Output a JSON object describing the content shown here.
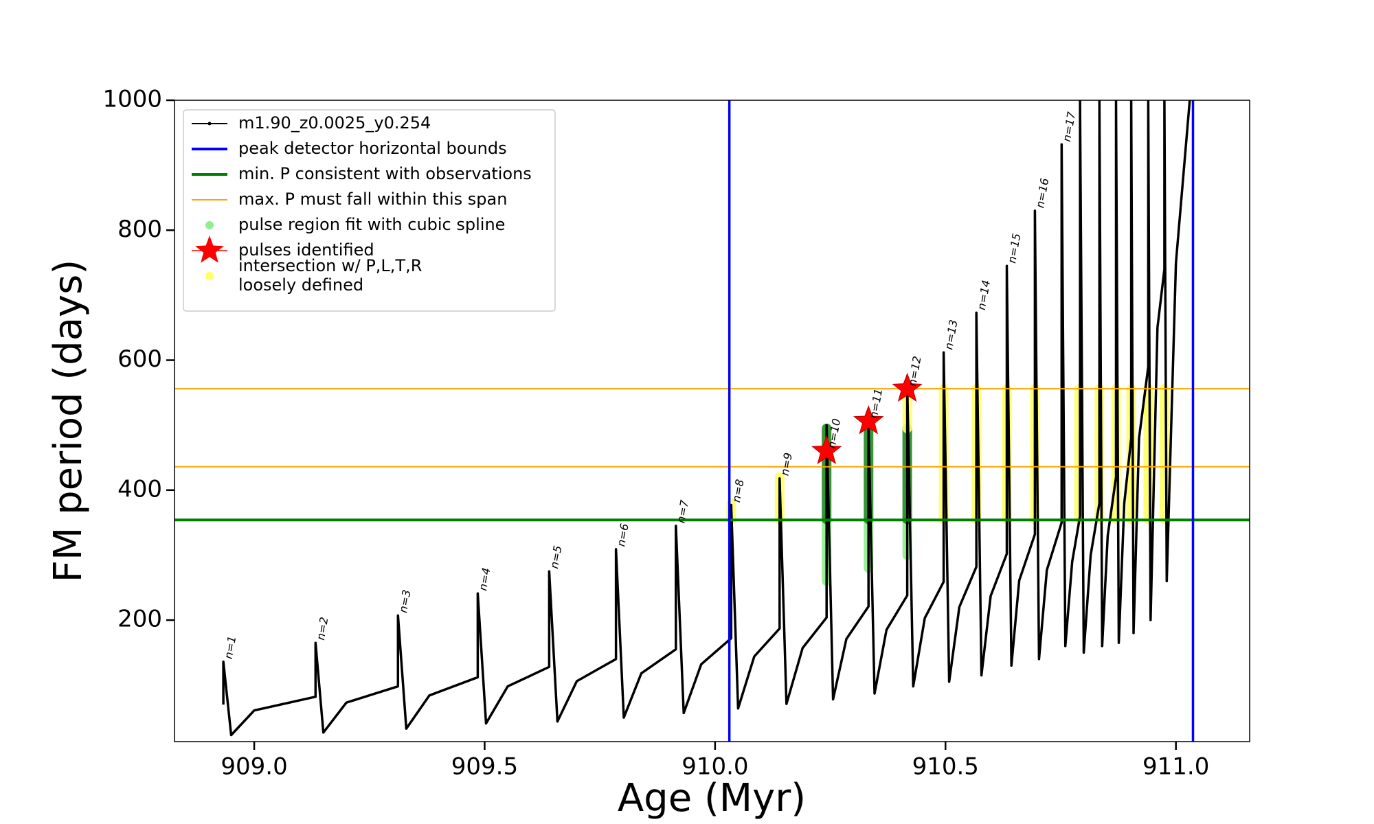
{
  "chart_data": {
    "type": "line",
    "xlabel": "Age (Myr)",
    "ylabel": "FM period (days)",
    "xlim": [
      908.827,
      911.16
    ],
    "ylim": [
      13,
      1000
    ],
    "xticks": [
      {
        "value": 909.0,
        "label": "909.0"
      },
      {
        "value": 909.5,
        "label": "909.5"
      },
      {
        "value": 910.0,
        "label": "910.0"
      },
      {
        "value": 910.5,
        "label": "910.5"
      },
      {
        "value": 911.0,
        "label": "911.0"
      }
    ],
    "yticks": [
      200,
      400,
      600,
      800,
      1000
    ],
    "legend": "upper left",
    "series": [
      {
        "name": "m1.90_z0.0025_y0.254",
        "kind": "line",
        "color": "#000000",
        "x": [
          908.933,
          908.933,
          908.95,
          909.0,
          909.133,
          909.133,
          909.15,
          909.2,
          909.312,
          909.312,
          909.33,
          909.38,
          909.485,
          909.485,
          909.503,
          909.55,
          909.64,
          909.64,
          909.658,
          909.7,
          909.785,
          909.785,
          909.802,
          909.84,
          909.915,
          909.915,
          909.932,
          909.97,
          910.035,
          910.035,
          910.05,
          910.085,
          910.14,
          910.14,
          910.155,
          910.19,
          910.242,
          910.242,
          910.256,
          910.285,
          910.333,
          910.333,
          910.346,
          910.372,
          910.417,
          910.417,
          910.43,
          910.455,
          910.496,
          910.496,
          910.508,
          910.53,
          910.567,
          910.567,
          910.578,
          910.598,
          910.633,
          910.633,
          910.643,
          910.66,
          910.694,
          910.694,
          910.703,
          910.72,
          910.752,
          910.752,
          910.76,
          910.775,
          910.792,
          910.792,
          910.8,
          910.815,
          910.834,
          910.834,
          910.84,
          910.852,
          910.87,
          910.87,
          910.876,
          910.888,
          910.903,
          910.903,
          910.908,
          910.92,
          910.94,
          910.94,
          910.945,
          910.96,
          910.975,
          910.975,
          910.98,
          911.0,
          911.03
        ],
        "values": [
          70,
          136,
          23,
          61,
          82,
          165,
          27,
          73,
          98,
          207,
          33,
          84,
          112,
          241,
          41,
          98,
          128,
          275,
          44,
          106,
          140,
          309,
          50,
          118,
          155,
          345,
          57,
          132,
          172,
          377,
          64,
          144,
          187,
          418,
          71,
          157,
          204,
          500,
          78,
          171,
          221,
          500,
          87,
          185,
          238,
          560,
          98,
          203,
          259,
          612,
          105,
          220,
          282,
          673,
          115,
          237,
          302,
          745,
          130,
          261,
          332,
          830,
          140,
          277,
          350,
          932,
          160,
          290,
          360,
          1000,
          150,
          300,
          380,
          1000,
          160,
          330,
          420,
          1000,
          165,
          380,
          480,
          1000,
          180,
          480,
          590,
          1000,
          200,
          650,
          740,
          1000,
          260,
          750,
          1000
        ]
      },
      {
        "name": "peak detector horizontal bounds",
        "kind": "vline",
        "color": "#0000ff",
        "x": [
          910.031,
          911.037
        ]
      },
      {
        "name": "min. P consistent with observations",
        "kind": "hline",
        "color": "#008000",
        "values": [
          354
        ]
      },
      {
        "name": "max. P must fall within this span",
        "kind": "hline",
        "color": "#ffa500",
        "values": [
          556,
          436
        ]
      },
      {
        "name": "pulse region fit with cubic spline",
        "kind": "band",
        "color": "#90ee90",
        "x": [
          910.242,
          910.333,
          910.417
        ],
        "low": [
          260,
          280,
          300
        ],
        "high": [
          355,
          355,
          355
        ]
      },
      {
        "kind": "band",
        "color": "#228b22",
        "x": [
          910.242,
          910.333,
          910.417
        ],
        "low": [
          355,
          355,
          355
        ],
        "high": [
          495,
          500,
          495
        ]
      },
      {
        "name": "pulses identified",
        "kind": "star",
        "color": "#ff0000",
        "x": [
          910.242,
          910.333,
          910.417
        ],
        "values": [
          460,
          506,
          556
        ]
      },
      {
        "name": "intersection w/ P,L,T,R\nloosely defined",
        "kind": "band",
        "color": "#ffff66",
        "x": [
          910.035,
          910.14,
          910.417,
          910.496,
          910.567,
          910.633,
          910.694,
          910.79,
          910.834,
          910.87,
          910.903,
          910.94,
          910.975
        ],
        "low": [
          355,
          355,
          495,
          355,
          355,
          355,
          355,
          355,
          355,
          355,
          355,
          355,
          355
        ],
        "high": [
          380,
          420,
          556,
          556,
          556,
          556,
          556,
          556,
          556,
          556,
          556,
          556,
          556
        ]
      }
    ],
    "annotations": [
      {
        "text": "n=1",
        "x": 908.933,
        "y": 136
      },
      {
        "text": "n=2",
        "x": 909.133,
        "y": 165
      },
      {
        "text": "n=3",
        "x": 909.312,
        "y": 207
      },
      {
        "text": "n=4",
        "x": 909.485,
        "y": 241
      },
      {
        "text": "n=5",
        "x": 909.64,
        "y": 275
      },
      {
        "text": "n=6",
        "x": 909.785,
        "y": 309
      },
      {
        "text": "n=7",
        "x": 909.915,
        "y": 345
      },
      {
        "text": "n=8",
        "x": 910.035,
        "y": 377
      },
      {
        "text": "n=9",
        "x": 910.14,
        "y": 418
      },
      {
        "text": "n=10",
        "x": 910.242,
        "y": 460
      },
      {
        "text": "n=11",
        "x": 910.333,
        "y": 506
      },
      {
        "text": "n=12",
        "x": 910.417,
        "y": 556
      },
      {
        "text": "n=13",
        "x": 910.496,
        "y": 612
      },
      {
        "text": "n=14",
        "x": 910.567,
        "y": 673
      },
      {
        "text": "n=15",
        "x": 910.633,
        "y": 745
      },
      {
        "text": "n=16",
        "x": 910.694,
        "y": 830
      },
      {
        "text": "n=17",
        "x": 910.752,
        "y": 932
      }
    ]
  }
}
